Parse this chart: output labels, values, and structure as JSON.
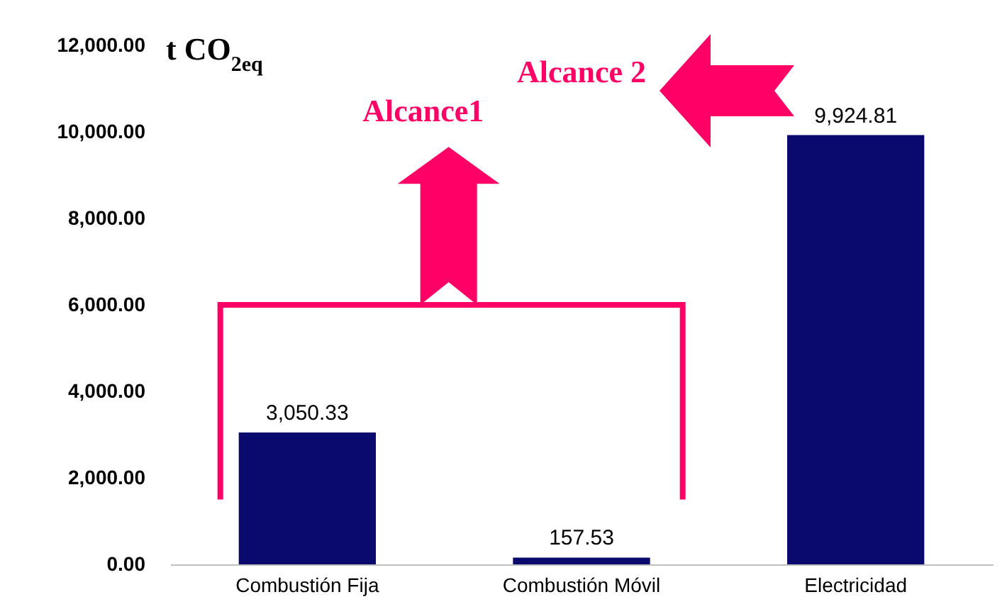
{
  "chart_data": {
    "type": "bar",
    "ylabel": "t CO$_{2eq}$",
    "categories": [
      "Combustión Fija",
      "Combustión Móvil",
      "Electricidad"
    ],
    "values": [
      3050.33,
      157.53,
      9924.81
    ],
    "value_labels": [
      "3,050.33",
      "157.53",
      "9,924.81"
    ],
    "color": "#0a0a6e",
    "ylim": [
      0,
      12000
    ],
    "yticks": [
      {
        "value": 0,
        "label": "0.00"
      },
      {
        "value": 2000,
        "label": "2,000.00"
      },
      {
        "value": 4000,
        "label": "4,000.00"
      },
      {
        "value": 6000,
        "label": "6,000.00"
      },
      {
        "value": 8000,
        "label": "8,000.00"
      },
      {
        "value": 10000,
        "label": "10,000.00"
      },
      {
        "value": 12000,
        "label": "12,000.00"
      }
    ],
    "annotations": [
      "Alcance1",
      "Alcance 2"
    ]
  }
}
